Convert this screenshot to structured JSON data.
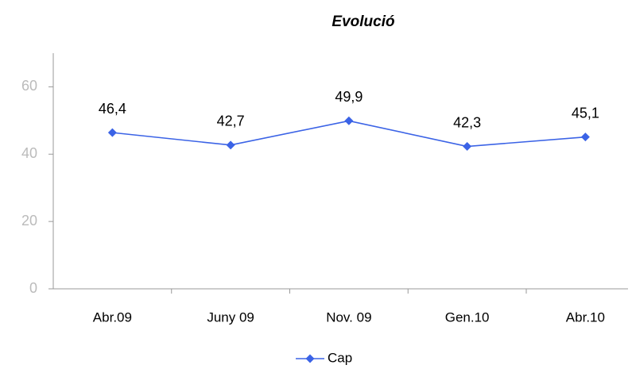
{
  "chart_data": {
    "type": "line",
    "title": "Evolució",
    "categories": [
      "Abr.09",
      "Juny 09",
      "Nov. 09",
      "Gen.10",
      "Abr.10"
    ],
    "series": [
      {
        "name": "Cap",
        "color": "#3b63e6",
        "values": [
          46.4,
          42.7,
          49.9,
          42.3,
          45.1
        ],
        "value_labels": [
          "46,4",
          "42,7",
          "49,9",
          "42,3",
          "45,1"
        ]
      }
    ],
    "ylim": [
      0,
      70
    ],
    "yticks": [
      0,
      20,
      40,
      60
    ],
    "grid": false,
    "legend": "bottom"
  }
}
